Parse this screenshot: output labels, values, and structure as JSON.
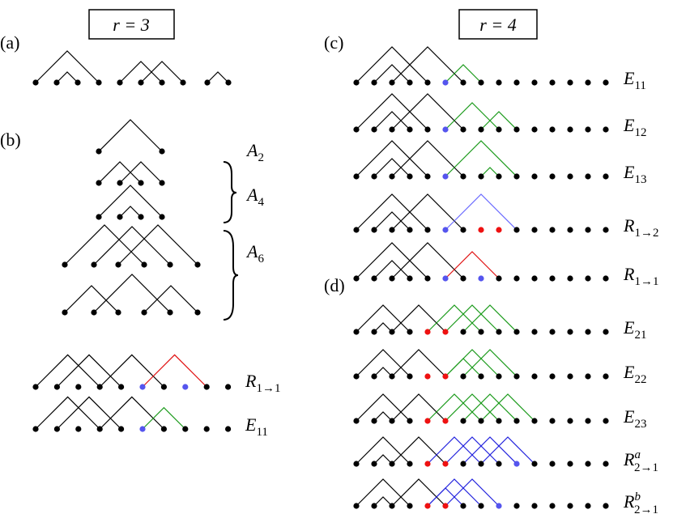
{
  "headers": [
    "r = 3",
    "r = 4"
  ],
  "panels": [
    "(a)",
    "(b)",
    "(c)",
    "(d)"
  ],
  "a_labels": [
    {
      "main": "A",
      "sub": "2"
    },
    {
      "main": "A",
      "sub": "4"
    },
    {
      "main": "A",
      "sub": "6"
    }
  ],
  "b_rows": [
    {
      "main": "R",
      "sub": "1→1"
    },
    {
      "main": "E",
      "sub": "11"
    }
  ],
  "c_rows": [
    {
      "main": "E",
      "sub": "11"
    },
    {
      "main": "E",
      "sub": "12"
    },
    {
      "main": "E",
      "sub": "13"
    },
    {
      "main": "R",
      "sub": "1→2"
    },
    {
      "main": "R",
      "sub": "1→1"
    }
  ],
  "d_rows": [
    {
      "main": "E",
      "sub": "21"
    },
    {
      "main": "E",
      "sub": "22"
    },
    {
      "main": "E",
      "sub": "23"
    },
    {
      "main": "R",
      "sup": "a",
      "sub": "2→1"
    },
    {
      "main": "R",
      "sup": "b",
      "sub": "2→1"
    }
  ]
}
